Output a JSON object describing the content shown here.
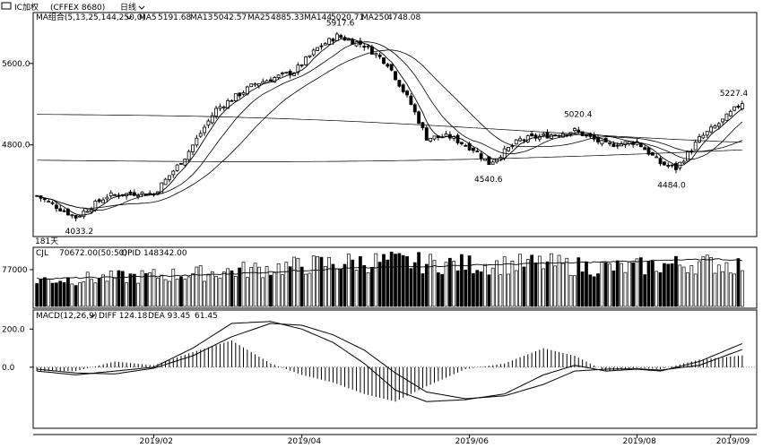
{
  "window": {
    "instrument": "IC加权",
    "instrument_code": "(CFFEX 8680)",
    "period_label": "日线",
    "dropdown_icon": "chevron-down-icon"
  },
  "main_panel": {
    "indicator_label": "MA组合(5,13,25,144,250,0)",
    "ma_values": [
      {
        "name": "MA5",
        "value": "5191.68"
      },
      {
        "name": "MA13",
        "value": "5042.57"
      },
      {
        "name": "MA25",
        "value": "4885.33"
      },
      {
        "name": "MA144",
        "value": "5020.71"
      },
      {
        "name": "MA250",
        "value": "4748.08"
      }
    ],
    "days_label": "181天",
    "y_ticks": [
      {
        "value": 4800,
        "label": "4800.0"
      },
      {
        "value": 5600,
        "label": "5600.0"
      }
    ],
    "annotations": [
      {
        "label": "5917.6",
        "value": 5917.6,
        "index": 77
      },
      {
        "label": "5020.4",
        "value": 5020.4,
        "index": 138
      },
      {
        "label": "5227.4",
        "value": 5227.4,
        "index": 178
      },
      {
        "label": "4540.6",
        "value": 4540.6,
        "index": 115
      },
      {
        "label": "4484.0",
        "value": 4484.0,
        "index": 162
      },
      {
        "label": "4033.2",
        "value": 4033.2,
        "index": 10
      }
    ]
  },
  "volume_panel": {
    "label": "CJL",
    "value_text": "70672.00(50:50)",
    "opi_text": "OPID 148342.00",
    "y_tick": {
      "value": 77000,
      "label": "77000"
    }
  },
  "macd_panel": {
    "label": "MACD(12,26,9)",
    "diff_text": "DIFF 124.18",
    "dea_text": "DEA 93.45",
    "macd_text": "61.45",
    "y_ticks": [
      {
        "value": 0,
        "label": "0.0"
      },
      {
        "value": 200,
        "label": "200.0"
      }
    ]
  },
  "x_labels": [
    {
      "label": "2019/02",
      "index": 30
    },
    {
      "label": "2019/04",
      "index": 68
    },
    {
      "label": "2019/06",
      "index": 111
    },
    {
      "label": "2019/08",
      "index": 154
    },
    {
      "label": "2019/09",
      "index": 178
    }
  ],
  "chart_data": {
    "type": "candlestick",
    "title": "",
    "colors": {
      "up_body": "#ffffff",
      "down_body": "#000000",
      "line": "#000000"
    },
    "price_anchors": [
      [
        0,
        4300
      ],
      [
        10,
        4090
      ],
      [
        18,
        4300
      ],
      [
        26,
        4330
      ],
      [
        30,
        4320
      ],
      [
        38,
        4680
      ],
      [
        46,
        5150
      ],
      [
        56,
        5400
      ],
      [
        66,
        5520
      ],
      [
        72,
        5750
      ],
      [
        77,
        5870
      ],
      [
        84,
        5780
      ],
      [
        90,
        5600
      ],
      [
        96,
        5200
      ],
      [
        100,
        4870
      ],
      [
        106,
        4880
      ],
      [
        112,
        4760
      ],
      [
        116,
        4620
      ],
      [
        124,
        4850
      ],
      [
        132,
        4900
      ],
      [
        138,
        4940
      ],
      [
        146,
        4800
      ],
      [
        154,
        4830
      ],
      [
        160,
        4620
      ],
      [
        164,
        4570
      ],
      [
        170,
        4860
      ],
      [
        176,
        5040
      ],
      [
        181,
        5220
      ]
    ],
    "ma_series": [
      "MA5",
      "MA13",
      "MA25",
      "MA144",
      "MA250"
    ],
    "volume_anchors": [
      [
        0,
        55000
      ],
      [
        20,
        60000
      ],
      [
        40,
        68000
      ],
      [
        60,
        80000
      ],
      [
        72,
        88000
      ],
      [
        80,
        92000
      ],
      [
        90,
        94000
      ],
      [
        100,
        90000
      ],
      [
        110,
        88000
      ],
      [
        120,
        87000
      ],
      [
        130,
        90000
      ],
      [
        140,
        83000
      ],
      [
        150,
        80000
      ],
      [
        160,
        86000
      ],
      [
        170,
        90000
      ],
      [
        181,
        86000
      ]
    ],
    "opi_anchors": [
      [
        0,
        58000
      ],
      [
        20,
        61000
      ],
      [
        40,
        65000
      ],
      [
        60,
        72000
      ],
      [
        80,
        80000
      ],
      [
        100,
        84000
      ],
      [
        120,
        88000
      ],
      [
        140,
        92000
      ],
      [
        160,
        96000
      ],
      [
        175,
        99000
      ],
      [
        181,
        96000
      ]
    ],
    "macd_diff_anchors": [
      [
        0,
        -20
      ],
      [
        10,
        -40
      ],
      [
        20,
        -20
      ],
      [
        30,
        0
      ],
      [
        40,
        100
      ],
      [
        50,
        230
      ],
      [
        60,
        240
      ],
      [
        68,
        200
      ],
      [
        76,
        130
      ],
      [
        84,
        20
      ],
      [
        92,
        -120
      ],
      [
        100,
        -180
      ],
      [
        110,
        -170
      ],
      [
        120,
        -140
      ],
      [
        130,
        -40
      ],
      [
        138,
        10
      ],
      [
        146,
        -20
      ],
      [
        154,
        -10
      ],
      [
        160,
        -20
      ],
      [
        170,
        30
      ],
      [
        181,
        124
      ]
    ],
    "macd_dea_anchors": [
      [
        0,
        -10
      ],
      [
        10,
        -30
      ],
      [
        20,
        -35
      ],
      [
        30,
        -5
      ],
      [
        40,
        60
      ],
      [
        50,
        160
      ],
      [
        60,
        230
      ],
      [
        68,
        220
      ],
      [
        76,
        170
      ],
      [
        84,
        90
      ],
      [
        92,
        -30
      ],
      [
        100,
        -130
      ],
      [
        110,
        -165
      ],
      [
        120,
        -150
      ],
      [
        130,
        -90
      ],
      [
        138,
        -20
      ],
      [
        146,
        -10
      ],
      [
        154,
        -8
      ],
      [
        160,
        -15
      ],
      [
        170,
        10
      ],
      [
        181,
        93
      ]
    ]
  }
}
